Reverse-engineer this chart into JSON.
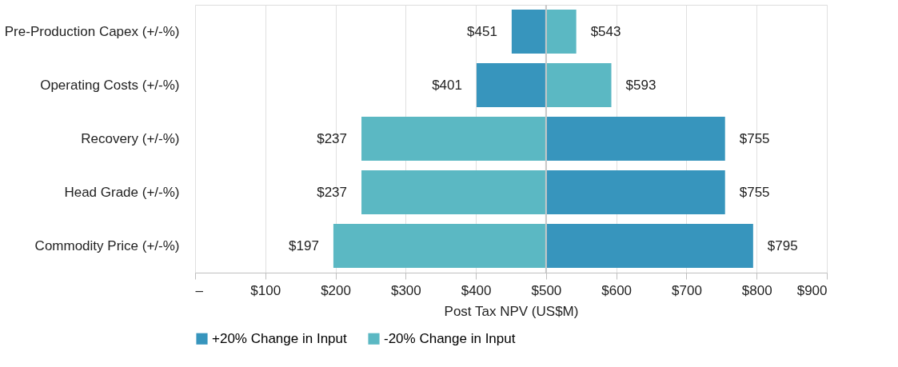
{
  "chart_data": {
    "type": "bar",
    "orientation": "horizontal",
    "xlabel": "Post Tax NPV (US$M)",
    "categories": [
      "Pre-Production Capex (+/-%)",
      "Operating Costs (+/-%)",
      "Recovery (+/-%)",
      "Head Grade (+/-%)",
      "Commodity Price (+/-%)"
    ],
    "series": [
      {
        "name": "+20% Change in Input",
        "color": "#3795bd",
        "base": [
          500,
          500,
          500,
          500,
          500
        ],
        "values": [
          -49,
          -99,
          255,
          255,
          295
        ],
        "value_labels": [
          "$451",
          "$401",
          "$755",
          "$755",
          "$795"
        ]
      },
      {
        "name": "-20% Change in Input",
        "color": "#5bb8c3",
        "base": [
          500,
          500,
          500,
          500,
          500
        ],
        "values": [
          43,
          93,
          -263,
          -263,
          -303
        ],
        "value_labels": [
          "$543",
          "$593",
          "$237",
          "$237",
          "$197"
        ]
      }
    ],
    "xlim": [
      0,
      900
    ],
    "xticks": [
      {
        "value": 0,
        "label": "–"
      },
      {
        "value": 100,
        "label": "$100"
      },
      {
        "value": 200,
        "label": "$200"
      },
      {
        "value": 300,
        "label": "$300"
      },
      {
        "value": 400,
        "label": "$400"
      },
      {
        "value": 500,
        "label": "$500"
      },
      {
        "value": 600,
        "label": "$600"
      },
      {
        "value": 700,
        "label": "$700"
      },
      {
        "value": 800,
        "label": "$800"
      },
      {
        "value": 900,
        "label": "$900"
      }
    ],
    "ref_lines": [
      {
        "axis": "x",
        "value": 500,
        "color": "#c8c8c8"
      }
    ],
    "grid": "x",
    "legend": "bottom"
  }
}
